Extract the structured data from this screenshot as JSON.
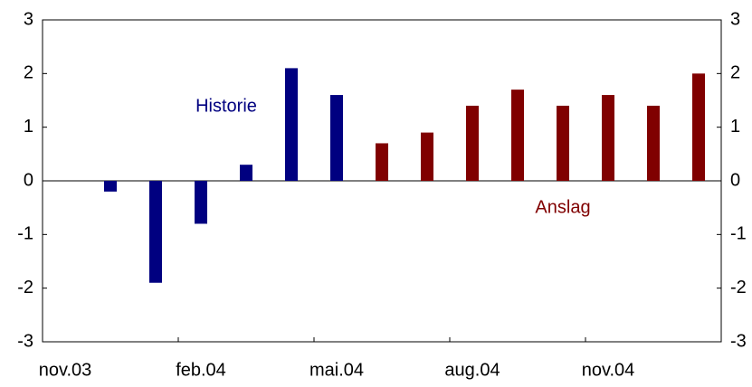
{
  "chart_data": {
    "type": "bar",
    "categories": [
      "nov.03",
      null,
      null,
      "feb.04",
      null,
      null,
      "mai.04",
      null,
      null,
      "aug.04",
      null,
      null,
      "nov.04",
      null,
      null
    ],
    "series": [
      {
        "name": "Historie",
        "color": "#000080",
        "values": [
          null,
          -0.2,
          -1.9,
          -0.8,
          0.3,
          2.1,
          1.6,
          null,
          null,
          null,
          null,
          null,
          null,
          null,
          null
        ]
      },
      {
        "name": "Anslag",
        "color": "#800000",
        "values": [
          null,
          null,
          null,
          null,
          null,
          null,
          null,
          0.7,
          0.9,
          1.4,
          1.7,
          1.4,
          1.6,
          1.4,
          2.0
        ]
      }
    ],
    "ylim": [
      -3,
      3
    ],
    "yticks": [
      -3,
      -2,
      -1,
      0,
      1,
      2,
      3
    ],
    "y2lim": [
      -3,
      3
    ],
    "y2ticks": [
      -3,
      -2,
      -1,
      0,
      1,
      2,
      3
    ],
    "legend": "inline"
  }
}
